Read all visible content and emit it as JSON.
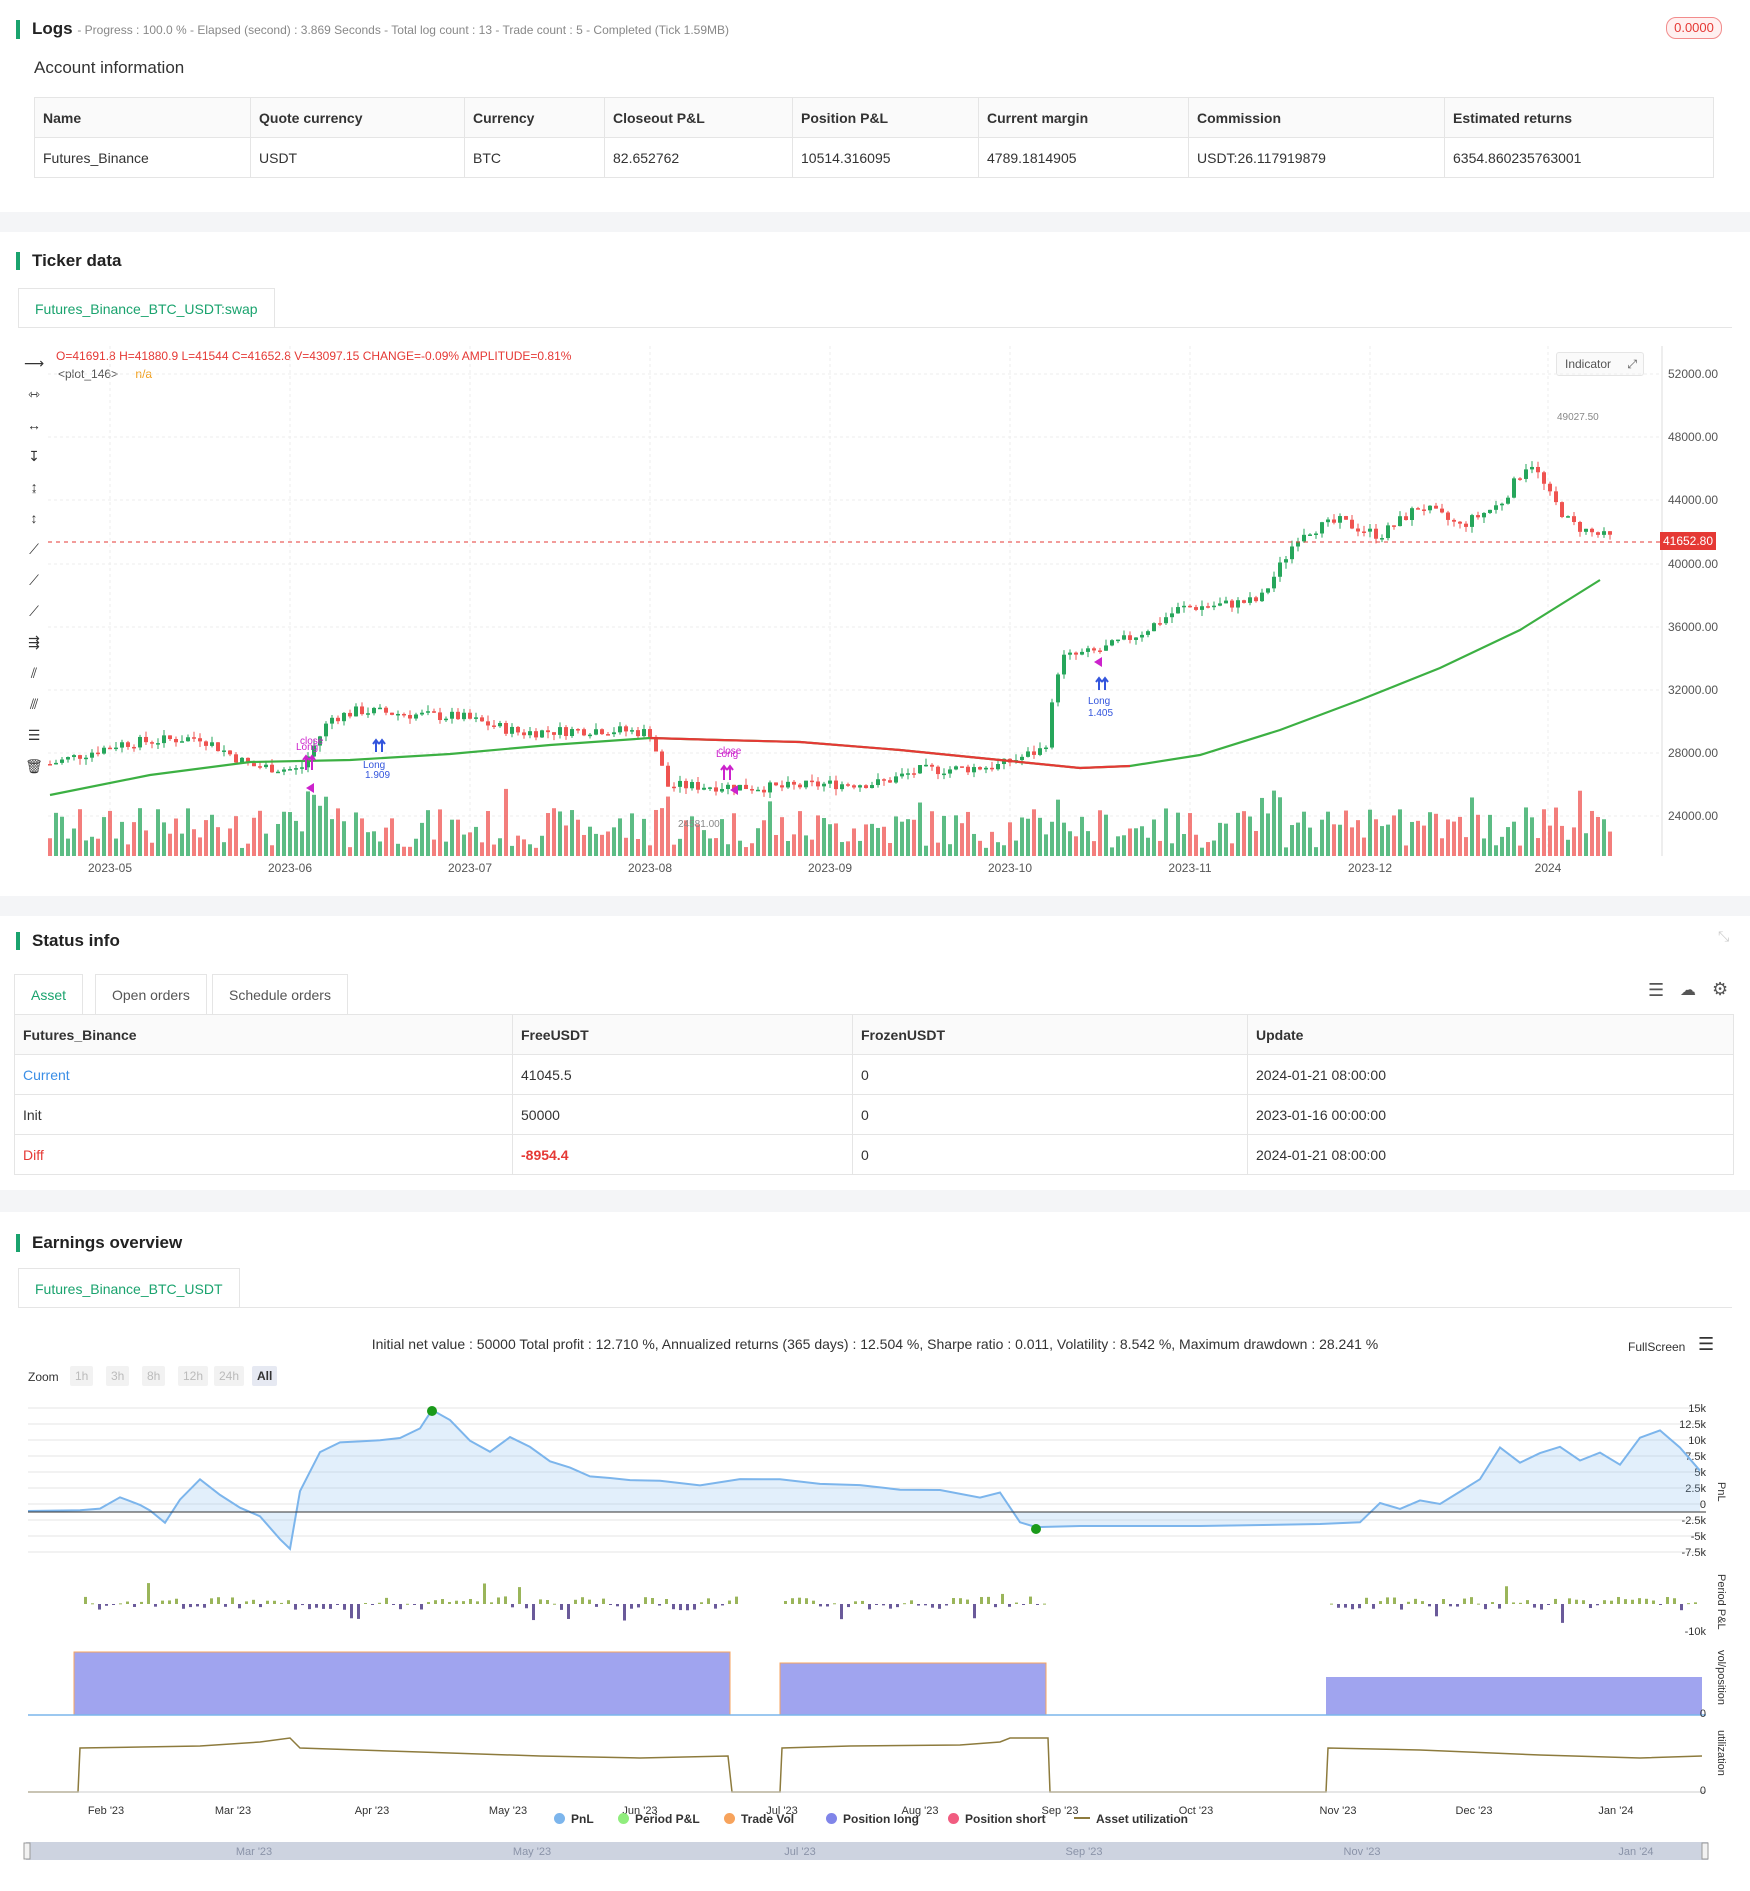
{
  "logs": {
    "title": "Logs",
    "status": "- Progress : 100.0 % - Elapsed (second) : 3.869 Seconds - Total log count : 13 - Trade count : 5 - Completed (Tick 1.59MB)",
    "badge": "0.0000"
  },
  "account": {
    "title": "Account information",
    "headers": [
      "Name",
      "Quote currency",
      "Currency",
      "Closeout P&L",
      "Position P&L",
      "Current margin",
      "Commission",
      "Estimated returns"
    ],
    "row": [
      "Futures_Binance",
      "USDT",
      "BTC",
      "82.652762",
      "10514.316095",
      "4789.1814905",
      "USDT:26.117919879",
      "6354.860235763001"
    ]
  },
  "ticker": {
    "title": "Ticker data",
    "tab": "Futures_Binance_BTC_USDT:swap",
    "ohlc": {
      "o": "O=41691.8",
      "h": "H=41880.9",
      "l": "L=41544",
      "c": "C=41652.8",
      "v": "V=43097.15",
      "change": "CHANGE=-0.09%",
      "amplitude": "AMPLITUDE=0.81%"
    },
    "plot_label": "<plot_146>",
    "plot_value": "n/a",
    "indicator_btn": "Indicator",
    "last_price": "41652.80",
    "high_marker": "49027.50",
    "low_marker": "24581.00",
    "y_ticks": [
      "52000.00",
      "48000.00",
      "44000.00",
      "40000.00",
      "36000.00",
      "32000.00",
      "28000.00",
      "24000.00"
    ],
    "x_ticks": [
      "2023-05",
      "2023-06",
      "2023-07",
      "2023-08",
      "2023-09",
      "2023-10",
      "2023-11",
      "2023-12",
      "2024"
    ],
    "signals": {
      "long1": "Long",
      "long1_val": "1.909",
      "close1": "close",
      "long1b": "Long",
      "long2": "Long",
      "close2": "close",
      "long3": "Long",
      "long3_val": "1.405"
    },
    "colors": {
      "up": "#26a65b",
      "down": "#ef5350",
      "ma_up": "#3cb043",
      "ma_down": "#e53935",
      "signal_long": "#3355dd",
      "signal_close": "#cc22cc"
    }
  },
  "status": {
    "title": "Status info",
    "tabs": [
      "Asset",
      "Open orders",
      "Schedule orders"
    ],
    "headers": [
      "Futures_Binance",
      "FreeUSDT",
      "FrozenUSDT",
      "Update"
    ],
    "rows": [
      [
        "Current",
        "41045.5",
        "0",
        "2024-01-21 08:00:00"
      ],
      [
        "Init",
        "50000",
        "0",
        "2023-01-16 00:00:00"
      ],
      [
        "Diff",
        "-8954.4",
        "0",
        "2024-01-21 08:00:00"
      ]
    ]
  },
  "earnings": {
    "title": "Earnings overview",
    "tab": "Futures_Binance_BTC_USDT",
    "summary": "Initial net value : 50000 Total profit : 12.710 %, Annualized returns (365 days) : 12.504 %, Sharpe ratio : 0.011, Volatility : 8.542 %, Maximum drawdown : 28.241 %",
    "fullscreen": "FullScreen",
    "zoom_label": "Zoom",
    "zoom_opts": [
      "1h",
      "3h",
      "8h",
      "12h",
      "24h",
      "All"
    ],
    "pnl_ticks": [
      "15k",
      "12.5k",
      "10k",
      "7.5k",
      "5k",
      "2.5k",
      "0",
      "-2.5k",
      "-5k",
      "-7.5k"
    ],
    "period_ticks": [
      "-10k"
    ],
    "pos_ticks": [
      "0"
    ],
    "util_ticks": [
      "0"
    ],
    "axis_titles": [
      "PnL",
      "Period P&L",
      "vol/position",
      "utilization"
    ],
    "x_ticks": [
      "Feb '23",
      "Mar '23",
      "Apr '23",
      "May '23",
      "Jun '23",
      "Jul '23",
      "Aug '23",
      "Sep '23",
      "Oct '23",
      "Nov '23",
      "Dec '23",
      "Jan '24"
    ],
    "nav_ticks": [
      "Mar '23",
      "May '23",
      "Jul '23",
      "Sep '23",
      "Nov '23",
      "Jan '24"
    ],
    "legend": [
      {
        "label": "PnL",
        "color": "#7cb5ec"
      },
      {
        "label": "Period P&L",
        "color": "#90ed7d"
      },
      {
        "label": "Trade Vol",
        "color": "#f7a35c"
      },
      {
        "label": "Position long",
        "color": "#8085e9"
      },
      {
        "label": "Position short",
        "color": "#f15c80"
      },
      {
        "label": "Asset utilization",
        "color": "#8d7b3d"
      }
    ]
  }
}
